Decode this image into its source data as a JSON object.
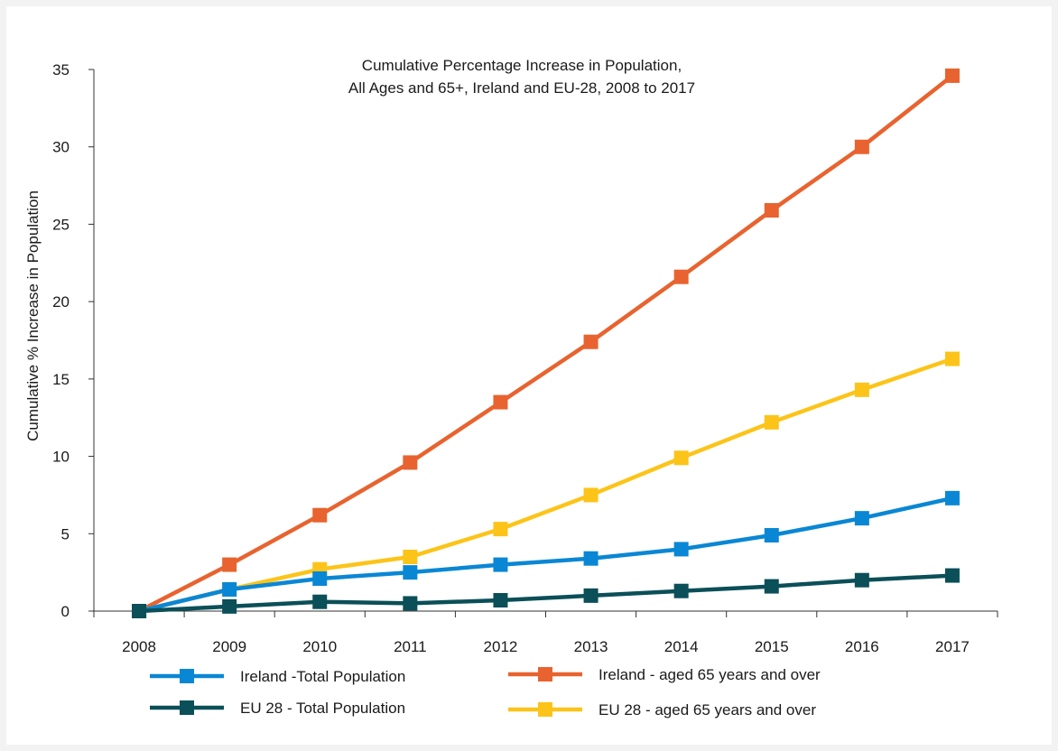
{
  "chart_data": {
    "type": "line",
    "title_lines": [
      "Cumulative Percentage Increase in Population,",
      "All Ages and 65+, Ireland and EU-28, 2008 to 2017"
    ],
    "xlabel": "",
    "ylabel": "Cumulative % Increase in Population",
    "x": [
      "2008",
      "2009",
      "2010",
      "2011",
      "2012",
      "2013",
      "2014",
      "2015",
      "2016",
      "2017"
    ],
    "ylim": [
      0,
      35
    ],
    "yticks": [
      0,
      5,
      10,
      15,
      20,
      25,
      30,
      35
    ],
    "grid": false,
    "legend_position": "bottom",
    "series": [
      {
        "name": "Ireland -Total Population",
        "color": "#0a87d4",
        "values": [
          0,
          1.4,
          2.1,
          2.5,
          3.0,
          3.4,
          4.0,
          4.9,
          6.0,
          7.3
        ]
      },
      {
        "name": "Ireland - aged 65 years and over",
        "color": "#e8632f",
        "values": [
          0,
          3.0,
          6.2,
          9.6,
          13.5,
          17.4,
          21.6,
          25.9,
          30.0,
          34.6
        ]
      },
      {
        "name": "EU 28 - Total Population",
        "color": "#0b4f58",
        "values": [
          0,
          0.3,
          0.6,
          0.5,
          0.7,
          1.0,
          1.3,
          1.6,
          2.0,
          2.3
        ]
      },
      {
        "name": "EU 28 - aged 65 years and over",
        "color": "#fcc419",
        "values": [
          0,
          1.4,
          2.7,
          3.5,
          5.3,
          7.5,
          9.9,
          12.2,
          14.3,
          16.3
        ]
      }
    ]
  }
}
